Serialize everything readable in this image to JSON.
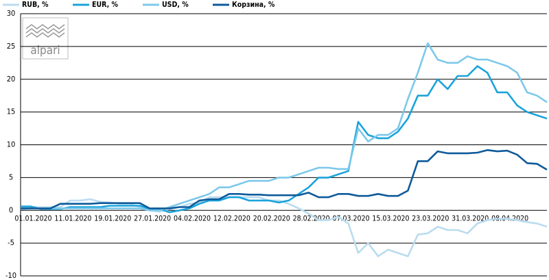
{
  "logo_text": "alpari",
  "chart_data": {
    "type": "line",
    "categories": [
      null,
      "01.01.2020",
      null,
      null,
      null,
      "11.01.2020",
      null,
      null,
      null,
      "19.01.2020",
      null,
      null,
      null,
      "27.01.2020",
      null,
      null,
      null,
      "04.02.2020",
      null,
      null,
      null,
      "12.02.2020",
      null,
      null,
      null,
      "20.02.2020",
      null,
      null,
      null,
      "28.02.2020",
      null,
      null,
      null,
      "07.03.2020",
      null,
      null,
      null,
      "15.03.2020",
      null,
      null,
      null,
      "23.03.2020",
      null,
      null,
      null,
      "31.03.2020",
      null,
      null,
      null,
      "08.04.2020",
      null,
      null,
      null,
      null
    ],
    "series": [
      {
        "name": "RUB, %",
        "color": "#b9dcef",
        "values": [
          0.5,
          0.5,
          0.5,
          0.5,
          0.5,
          1.5,
          1.5,
          1.7,
          1.3,
          1.2,
          1,
          1,
          0.5,
          0,
          -0.2,
          0.2,
          0.5,
          1,
          1.2,
          2,
          2,
          2,
          2,
          2,
          2,
          1.5,
          1.5,
          1,
          0.3,
          -0.5,
          -1.5,
          -1.5,
          -1,
          -2,
          -6.5,
          -5,
          -7,
          -6,
          -6.5,
          -7,
          -3.7,
          -3.5,
          -2.5,
          -3,
          -3,
          -3.5,
          -2,
          -1.5,
          -1.3,
          -1.3,
          -1.5,
          -1.8,
          -2,
          -2.5
        ]
      },
      {
        "name": "EUR, %",
        "color": "#1aa3db",
        "values": [
          0.6,
          0.6,
          0.2,
          0.2,
          0.2,
          0.5,
          0.5,
          0.5,
          0.5,
          0.7,
          0.7,
          0.7,
          0.7,
          0.2,
          0.2,
          -0.3,
          0,
          0.3,
          1,
          1.5,
          1.5,
          2,
          2,
          1.5,
          1.5,
          1.5,
          1.2,
          1.5,
          2.5,
          3.5,
          5,
          5,
          5.5,
          6,
          13.5,
          11.5,
          11,
          11,
          12,
          14,
          17.5,
          17.5,
          20,
          18.5,
          20.5,
          20.5,
          22,
          21,
          18,
          18,
          16,
          15,
          14.5,
          14
        ]
      },
      {
        "name": "USD, %",
        "color": "#7cc8ea",
        "values": [
          0.2,
          0.3,
          0.3,
          0.3,
          0.3,
          0.3,
          0.3,
          0.3,
          0.3,
          0.3,
          0.3,
          0.3,
          0.3,
          0,
          0,
          0.5,
          1,
          1.5,
          2,
          2.5,
          3.5,
          3.5,
          4,
          4.5,
          4.5,
          4.5,
          5,
          5,
          5.5,
          6,
          6.5,
          6.5,
          6.3,
          6.3,
          12.5,
          10.5,
          11.5,
          11.5,
          12.5,
          17,
          21,
          25.5,
          23,
          22.5,
          22.5,
          23.5,
          23,
          23,
          22.5,
          22,
          21,
          18,
          17.5,
          16.5
        ]
      },
      {
        "name": "Корзина, %",
        "color": "#0e5a9a",
        "values": [
          0.3,
          0.3,
          0.3,
          0.3,
          1,
          1,
          1,
          1,
          1.1,
          1.1,
          1.1,
          1.1,
          1.1,
          0.3,
          0.3,
          0.3,
          0.5,
          0.5,
          1.5,
          1.7,
          1.7,
          2.5,
          2.5,
          2.4,
          2.4,
          2.3,
          2.3,
          2.3,
          2.3,
          2.7,
          2,
          2,
          2.5,
          2.5,
          2.2,
          2.2,
          2.5,
          2.2,
          2.2,
          3,
          7.5,
          7.5,
          9,
          8.7,
          8.7,
          8.7,
          8.8,
          9.2,
          9,
          9.1,
          8.5,
          7.2,
          7.1,
          6.2
        ]
      }
    ],
    "ylim": [
      -10,
      30
    ],
    "yticks": [
      -10,
      -5,
      0,
      5,
      10,
      15,
      20,
      25,
      30
    ],
    "grid": true,
    "legend": "top"
  }
}
